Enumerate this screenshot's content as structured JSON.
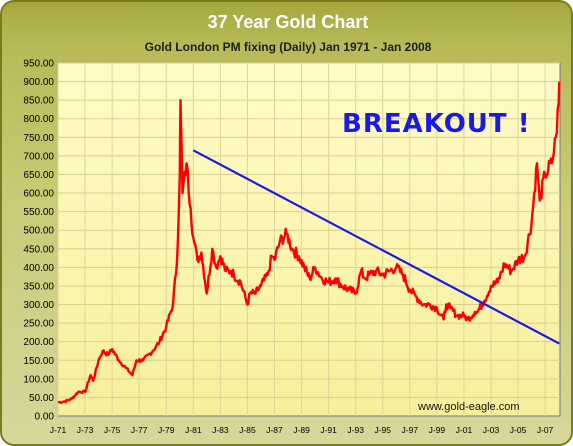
{
  "chart_data": {
    "type": "line",
    "title": "37 Year Gold Chart",
    "subtitle": "Gold London PM fixing (Daily) Jan 1971 - Jan 2008",
    "xlabel": "",
    "ylabel": "",
    "xlim": [
      1971.0,
      2008.1
    ],
    "ylim": [
      0,
      950
    ],
    "y_ticks": [
      "0.00",
      "50.00",
      "100.00",
      "150.00",
      "200.00",
      "250.00",
      "300.00",
      "350.00",
      "400.00",
      "450.00",
      "500.00",
      "550.00",
      "600.00",
      "650.00",
      "700.00",
      "750.00",
      "800.00",
      "850.00",
      "900.00",
      "950.00"
    ],
    "x_ticks": [
      "J-71",
      "J-73",
      "J-75",
      "J-77",
      "J-79",
      "J-81",
      "J-83",
      "J-85",
      "J-87",
      "J-89",
      "J-91",
      "J-93",
      "J-95",
      "J-97",
      "J-99",
      "J-01",
      "J-03",
      "J-05",
      "J-07"
    ],
    "grid": true,
    "legend": "none",
    "series": [
      {
        "name": "",
        "color": "#ff0000",
        "x": [
          1971.0,
          1971.5,
          1972.0,
          1972.5,
          1973.0,
          1973.4,
          1973.6,
          1974.0,
          1974.3,
          1974.7,
          1975.0,
          1975.5,
          1976.0,
          1976.5,
          1976.8,
          1977.3,
          1978.0,
          1978.5,
          1979.0,
          1979.5,
          1979.8,
          1980.0,
          1980.05,
          1980.2,
          1980.5,
          1980.8,
          1981.0,
          1981.3,
          1981.6,
          1982.0,
          1982.4,
          1982.7,
          1983.0,
          1983.4,
          1983.8,
          1984.0,
          1984.5,
          1985.0,
          1985.2,
          1985.6,
          1986.0,
          1986.5,
          1986.8,
          1987.0,
          1987.4,
          1987.9,
          1988.3,
          1988.8,
          1989.2,
          1989.6,
          1990.0,
          1990.5,
          1991.0,
          1991.5,
          1992.0,
          1992.5,
          1993.0,
          1993.4,
          1993.7,
          1994.0,
          1994.5,
          1995.0,
          1995.5,
          1996.0,
          1996.5,
          1997.0,
          1997.5,
          1998.0,
          1998.5,
          1999.0,
          1999.5,
          1999.7,
          2000.0,
          2000.5,
          2001.0,
          2001.3,
          2001.8,
          2002.0,
          2002.5,
          2003.0,
          2003.5,
          2004.0,
          2004.5,
          2005.0,
          2005.5,
          2006.0,
          2006.4,
          2006.6,
          2007.0,
          2007.5,
          2007.8,
          2008.0,
          2008.05
        ],
        "values": [
          37,
          39,
          46,
          65,
          65,
          110,
          95,
          150,
          175,
          165,
          180,
          150,
          130,
          110,
          150,
          150,
          175,
          200,
          240,
          300,
          420,
          650,
          850,
          600,
          680,
          560,
          480,
          420,
          440,
          330,
          450,
          400,
          430,
          390,
          390,
          380,
          360,
          300,
          330,
          330,
          350,
          380,
          430,
          420,
          470,
          490,
          450,
          430,
          400,
          370,
          400,
          370,
          360,
          370,
          350,
          340,
          330,
          390,
          370,
          380,
          390,
          380,
          390,
          400,
          380,
          340,
          320,
          300,
          300,
          290,
          260,
          300,
          290,
          270,
          270,
          260,
          280,
          280,
          310,
          350,
          360,
          410,
          390,
          420,
          430,
          520,
          680,
          580,
          650,
          680,
          750,
          840,
          900
        ]
      }
    ],
    "trendline": {
      "x": [
        1981.0,
        2008.05
      ],
      "values": [
        715,
        195
      ],
      "color": "#1a1ae8"
    },
    "annotations": [
      {
        "text": "BREAKOUT !",
        "color": "#1a1ae8"
      },
      {
        "text": "www.gold-eagle.com",
        "color": "#111111"
      }
    ]
  }
}
